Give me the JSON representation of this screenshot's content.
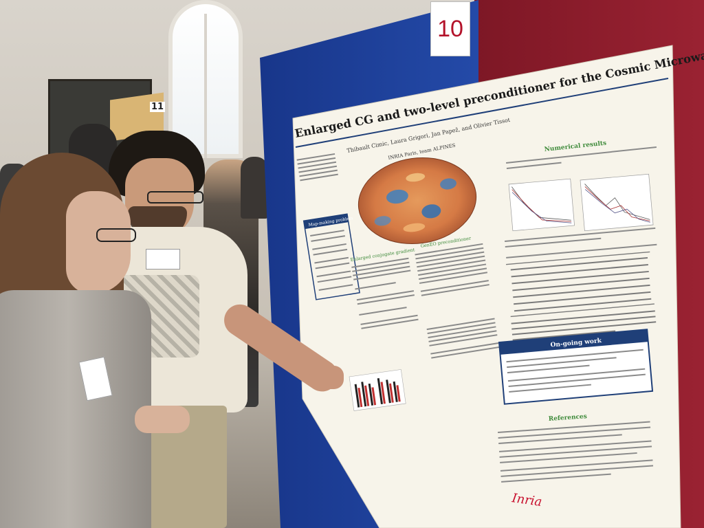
{
  "board": {
    "number": "10",
    "side_number": "11"
  },
  "poster": {
    "title": "Enlarged CG and two-level preconditioner for the Cosmic Microwave Background",
    "authors": "Thibault Cimic, Laura Grigori, Jan Papež, and Olivier Tissot",
    "affiliation": "INRIA Paris, team ALPINES",
    "sections": {
      "numerical_results": "Numerical results",
      "ongoing_work": "On-going work",
      "references": "References",
      "map_making_problem": "Map-making problem",
      "enlarged_conjugate_gradient": "Enlarged conjugate gradient",
      "geneo_preconditioner": "GenEO preconditioner"
    },
    "logo": "Inria"
  },
  "colors": {
    "poster_accent": "#1f3f78",
    "board_blue": "#1d3f96",
    "panel_red": "#8c1c2a",
    "logo_red": "#c8102e",
    "section_green": "#3e8a3a"
  }
}
